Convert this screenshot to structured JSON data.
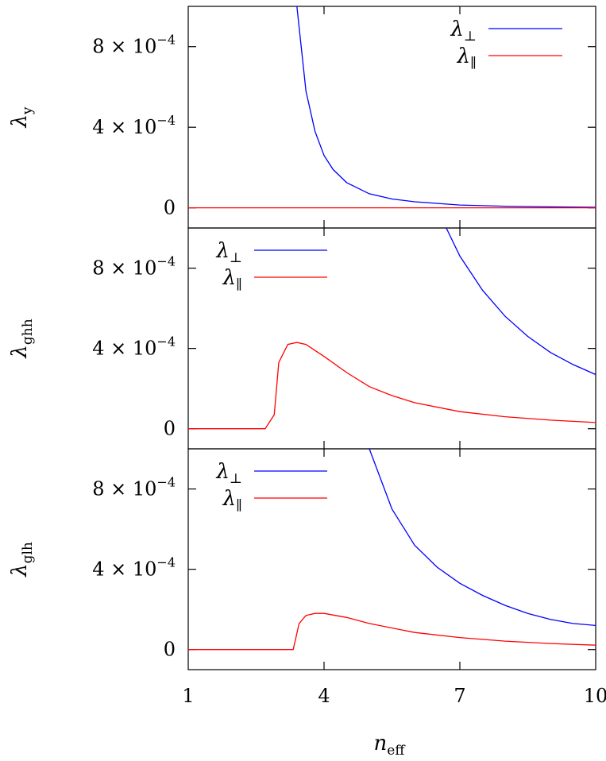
{
  "chart_data": {
    "type": "line",
    "xlabel": {
      "base": "n",
      "sub": "eff"
    },
    "xlim": [
      1,
      10
    ],
    "xticks": [
      {
        "v": 1,
        "label": "1"
      },
      {
        "v": 4,
        "label": "4"
      },
      {
        "v": 7,
        "label": "7"
      },
      {
        "v": 10,
        "label": "10"
      }
    ],
    "ylim": [
      -0.0001,
      0.001
    ],
    "yticks": [
      {
        "v": 0,
        "label": "0",
        "mant": "",
        "exp": ""
      },
      {
        "v": 0.0004,
        "label": "4 × 10⁻⁴",
        "mant": "4 × 10",
        "exp": "−4"
      },
      {
        "v": 0.0008,
        "label": "8 × 10⁻⁴",
        "mant": "8 × 10",
        "exp": "−4"
      }
    ],
    "legend_glyphs": {
      "perp": "⊥",
      "par": "∥"
    },
    "panels": [
      {
        "ylabel": {
          "base": "λ",
          "sub": "y"
        },
        "legend_position": "top-right",
        "series": [
          {
            "name": "λ⊥",
            "color": "#0000ff",
            "x": [
              3.4,
              3.6,
              3.8,
              4.0,
              4.2,
              4.5,
              5.0,
              5.5,
              6.0,
              7.0,
              8.0,
              9.0,
              10.0
            ],
            "y": [
              0.001,
              0.00058,
              0.00038,
              0.00026,
              0.00019,
              0.000125,
              7e-05,
              4.4e-05,
              3e-05,
              1.4e-05,
              8e-06,
              5e-06,
              3e-06
            ]
          },
          {
            "name": "λ∥",
            "color": "#ff0000",
            "x": [
              1,
              10
            ],
            "y": [
              0,
              0
            ]
          }
        ]
      },
      {
        "ylabel": {
          "base": "λ",
          "sub": "ghh"
        },
        "legend_position": "top-left",
        "series": [
          {
            "name": "λ⊥",
            "color": "#0000ff",
            "x": [
              6.7,
              7.0,
              7.5,
              8.0,
              8.5,
              9.0,
              9.5,
              10.0
            ],
            "y": [
              0.001,
              0.00086,
              0.00069,
              0.00056,
              0.00046,
              0.00038,
              0.00032,
              0.00027
            ]
          },
          {
            "name": "λ∥",
            "color": "#ff0000",
            "x": [
              1,
              2.7,
              2.9,
              3.0,
              3.2,
              3.4,
              3.6,
              3.8,
              4.0,
              4.5,
              5.0,
              5.5,
              6.0,
              7.0,
              8.0,
              9.0,
              10.0
            ],
            "y": [
              0,
              0,
              7e-05,
              0.00033,
              0.00042,
              0.00043,
              0.00042,
              0.00039,
              0.00036,
              0.00028,
              0.00021,
              0.000165,
              0.00013,
              8.5e-05,
              6e-05,
              4.3e-05,
              3.1e-05
            ]
          }
        ]
      },
      {
        "ylabel": {
          "base": "λ",
          "sub": "glh"
        },
        "legend_position": "top-left",
        "series": [
          {
            "name": "λ⊥",
            "color": "#0000ff",
            "x": [
              5.0,
              5.5,
              6.0,
              6.5,
              7.0,
              7.5,
              8.0,
              8.5,
              9.0,
              9.5,
              10.0
            ],
            "y": [
              0.001,
              0.0007,
              0.00052,
              0.00041,
              0.00033,
              0.00027,
              0.00022,
              0.00018,
              0.00015,
              0.00013,
              0.00012
            ]
          },
          {
            "name": "λ∥",
            "color": "#ff0000",
            "x": [
              1,
              3.32,
              3.45,
              3.6,
              3.8,
              4.0,
              4.5,
              5.0,
              6.0,
              7.0,
              8.0,
              9.0,
              10.0
            ],
            "y": [
              0,
              0,
              0.00013,
              0.00017,
              0.00018,
              0.00018,
              0.00016,
              0.00013,
              8.5e-05,
              6e-05,
              4.2e-05,
              3e-05,
              2.2e-05
            ]
          }
        ]
      }
    ]
  }
}
